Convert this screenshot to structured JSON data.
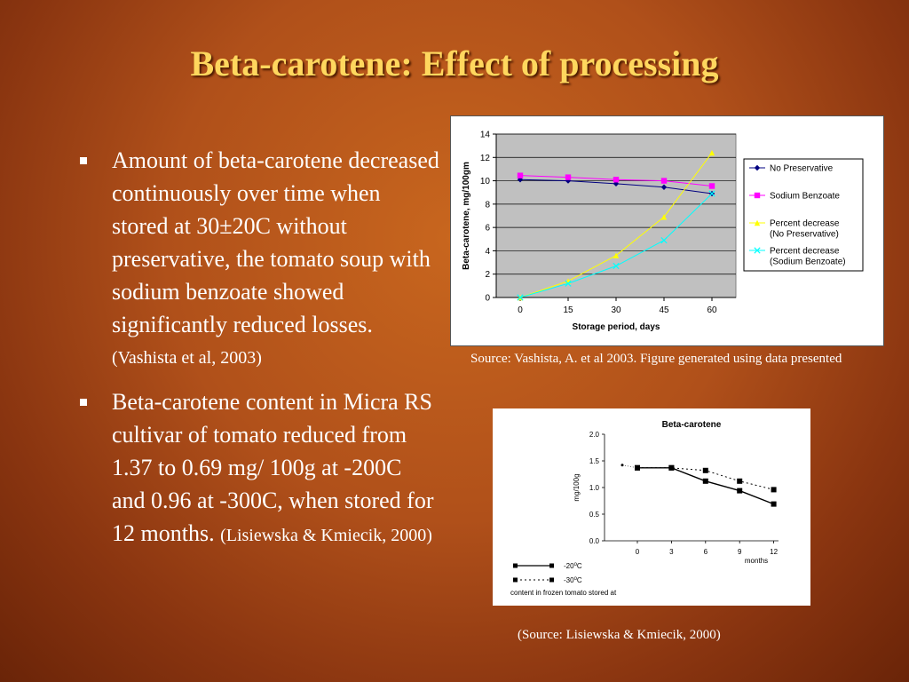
{
  "slide": {
    "title": "Beta-carotene: Effect of processing",
    "bullets": [
      {
        "text": "Amount of beta-carotene decreased continuously over time when stored at 30±20C without preservative, the tomato soup with sodium benzoate showed significantly reduced losses.",
        "citation": "(Vashista et al, 2003)"
      },
      {
        "text": "Beta-carotene content in Micra RS cultivar of tomato reduced from 1.37 to 0.69 mg/ 100g at -200C and 0.96 at -300C, when stored for 12 months.",
        "citation": "(Lisiewska & Kmiecik, 2000)"
      }
    ],
    "source1": "Source: Vashista, A. et al 2003. Figure generated using data presented",
    "source2": "(Source: Lisiewska & Kmiecik, 2000)",
    "colors": {
      "title": "#ffd75e",
      "plot_area": "#c0c0c0",
      "no_preservative": "#000080",
      "sodium_benzoate": "#ff00ff",
      "pct_no_pres": "#ffff00",
      "pct_sodium": "#00ffff"
    }
  },
  "chart_data": [
    {
      "type": "line",
      "title": "",
      "xlabel": "Storage period, days",
      "ylabel": "Beta-carotene, mg/100gm",
      "x": [
        0,
        15,
        30,
        45,
        60
      ],
      "xticks": [
        "0",
        "15",
        "30",
        "45",
        "60"
      ],
      "ylim": [
        0,
        14
      ],
      "yticks": [
        "0",
        "2",
        "4",
        "6",
        "8",
        "10",
        "12",
        "14"
      ],
      "grid": true,
      "legend_position": "right",
      "series": [
        {
          "name": "No Preservative",
          "values": [
            10.1,
            10.0,
            9.75,
            9.45,
            8.9
          ],
          "color": "#000080",
          "marker": "diamond"
        },
        {
          "name": "Sodium Benzoate",
          "values": [
            10.45,
            10.3,
            10.1,
            10.0,
            9.55
          ],
          "color": "#ff00ff",
          "marker": "square"
        },
        {
          "name": "Percent decrease (No Preservative)",
          "values": [
            0,
            1.4,
            3.6,
            6.9,
            12.4
          ],
          "color": "#ffff00",
          "marker": "triangle"
        },
        {
          "name": "Percent decrease (Sodium Benzoate)",
          "values": [
            0,
            1.2,
            2.7,
            4.9,
            8.9
          ],
          "color": "#00ffff",
          "marker": "x"
        }
      ]
    },
    {
      "type": "line",
      "title": "Beta-carotene",
      "xlabel": "months",
      "ylabel": "mg/100g",
      "x": [
        0,
        3,
        6,
        9,
        12
      ],
      "xticks": [
        "0",
        "3",
        "6",
        "9",
        "12"
      ],
      "ylim": [
        0,
        2.0
      ],
      "yticks": [
        "0.0",
        "0.5",
        "1.0",
        "1.5",
        "2.0"
      ],
      "grid": false,
      "legend_position": "bottom-left",
      "caption": "content in frozen tomato stored at",
      "initial_value": 1.42,
      "series": [
        {
          "name": "-20°C",
          "base": "-20",
          "sup": "o",
          "suffix": "C",
          "values": [
            1.37,
            1.37,
            1.12,
            0.94,
            0.69
          ],
          "style": "solid"
        },
        {
          "name": "-30°C",
          "base": "-30",
          "sup": "o",
          "suffix": "C",
          "values": [
            1.37,
            1.37,
            1.32,
            1.12,
            0.96
          ],
          "style": "dotted"
        }
      ]
    }
  ]
}
